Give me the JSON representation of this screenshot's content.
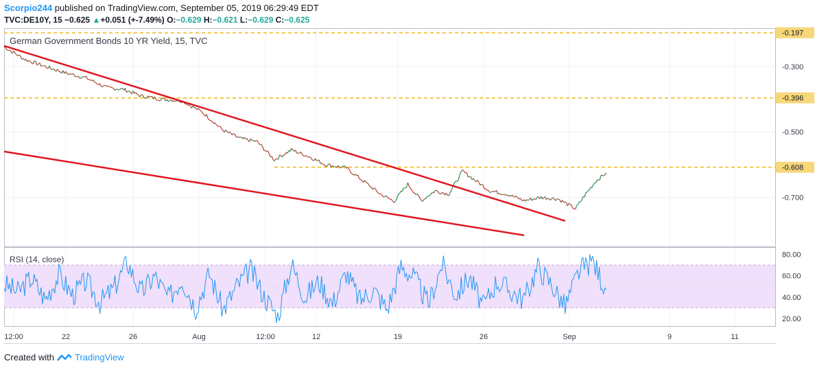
{
  "header": {
    "user": "Scorpio244",
    "published_text": "published on TradingView.com, September 05, 2019 06:29:49 EDT",
    "symbol": "TVC:DE10Y, 15",
    "last": "−0.625",
    "change_arrow": "▲",
    "change": "+0.051 (+-7.49%)",
    "open_label": "O:",
    "open": "−0.629",
    "high_label": "H:",
    "high": "−0.621",
    "low_label": "L:",
    "low": "−0.629",
    "close_label": "C:",
    "close": "−0.625"
  },
  "footer": {
    "created_with": "Created with",
    "brand": "TradingView"
  },
  "colors": {
    "trendline": "#e0171f",
    "level_line": "#f5c542",
    "level_label_bg": "#f8d77a",
    "rsi_line": "#2196f3",
    "rsi_band": "#f0e0fb",
    "up_candle": "#2e8b57",
    "down_candle": "#c0392b"
  },
  "chart_data": [
    {
      "type": "line",
      "title": "German Government Bonds 10 YR Yield, 15, TVC",
      "xlabel": "",
      "ylabel": "",
      "ylim": [
        -0.85,
        -0.185
      ],
      "grid": true,
      "x_ticks": [
        "12:00",
        "22",
        "26",
        "Aug",
        "12:00",
        "12",
        "19",
        "26",
        "Sep",
        "9",
        "11"
      ],
      "y_ticks": [
        -0.3,
        -0.5,
        -0.7
      ],
      "y_tick_labels": [
        "-0.300",
        "-0.500",
        "-0.700"
      ],
      "price_levels": [
        {
          "value": -0.197,
          "label": "-0.197"
        },
        {
          "value": -0.396,
          "label": "-0.396"
        },
        {
          "value": -0.608,
          "label": "-0.608"
        }
      ],
      "trendlines": [
        {
          "from": {
            "x": 0,
            "y": -0.237
          },
          "to": {
            "x": 820,
            "y": -0.772
          }
        },
        {
          "from": {
            "x": 0,
            "y": -0.56
          },
          "to": {
            "x": 760,
            "y": -0.816
          }
        }
      ],
      "series": [
        {
          "x": [
            0,
            30,
            60,
            90,
            120,
            150,
            175,
            200,
            230,
            260,
            290,
            320,
            345,
            370,
            395,
            420,
            445,
            470,
            500,
            525,
            550,
            570,
            590,
            610,
            630,
            650,
            670,
            690,
            710,
            735,
            760,
            785,
            810,
            835,
            850,
            865,
            880
          ],
          "y": [
            -0.24,
            -0.278,
            -0.3,
            -0.32,
            -0.335,
            -0.365,
            -0.37,
            -0.39,
            -0.4,
            -0.405,
            -0.44,
            -0.495,
            -0.52,
            -0.53,
            -0.585,
            -0.555,
            -0.575,
            -0.6,
            -0.61,
            -0.65,
            -0.69,
            -0.712,
            -0.66,
            -0.71,
            -0.68,
            -0.69,
            -0.62,
            -0.65,
            -0.68,
            -0.69,
            -0.71,
            -0.7,
            -0.705,
            -0.735,
            -0.69,
            -0.65,
            -0.625
          ]
        }
      ]
    },
    {
      "type": "line",
      "title": "RSI (14, close)",
      "xlabel": "",
      "ylabel": "",
      "ylim": [
        13,
        86
      ],
      "band": [
        30,
        70
      ],
      "y_ticks": [
        20,
        40,
        60,
        80
      ],
      "y_tick_labels": [
        "20.00",
        "40.00",
        "60.00",
        "80.00"
      ],
      "series": [
        {
          "x": [
            0,
            20,
            40,
            60,
            80,
            100,
            120,
            140,
            160,
            180,
            200,
            220,
            240,
            260,
            280,
            300,
            320,
            340,
            360,
            380,
            400,
            420,
            440,
            460,
            480,
            500,
            520,
            540,
            560,
            580,
            600,
            620,
            640,
            660,
            680,
            700,
            720,
            740,
            760,
            780,
            800,
            820,
            840,
            860,
            880
          ],
          "y": [
            52,
            45,
            58,
            38,
            61,
            42,
            55,
            35,
            48,
            73,
            44,
            60,
            39,
            57,
            30,
            62,
            28,
            50,
            66,
            41,
            22,
            71,
            40,
            55,
            34,
            63,
            37,
            47,
            29,
            69,
            58,
            33,
            71,
            42,
            59,
            31,
            55,
            46,
            38,
            68,
            52,
            31,
            64,
            74,
            47
          ]
        }
      ]
    }
  ]
}
